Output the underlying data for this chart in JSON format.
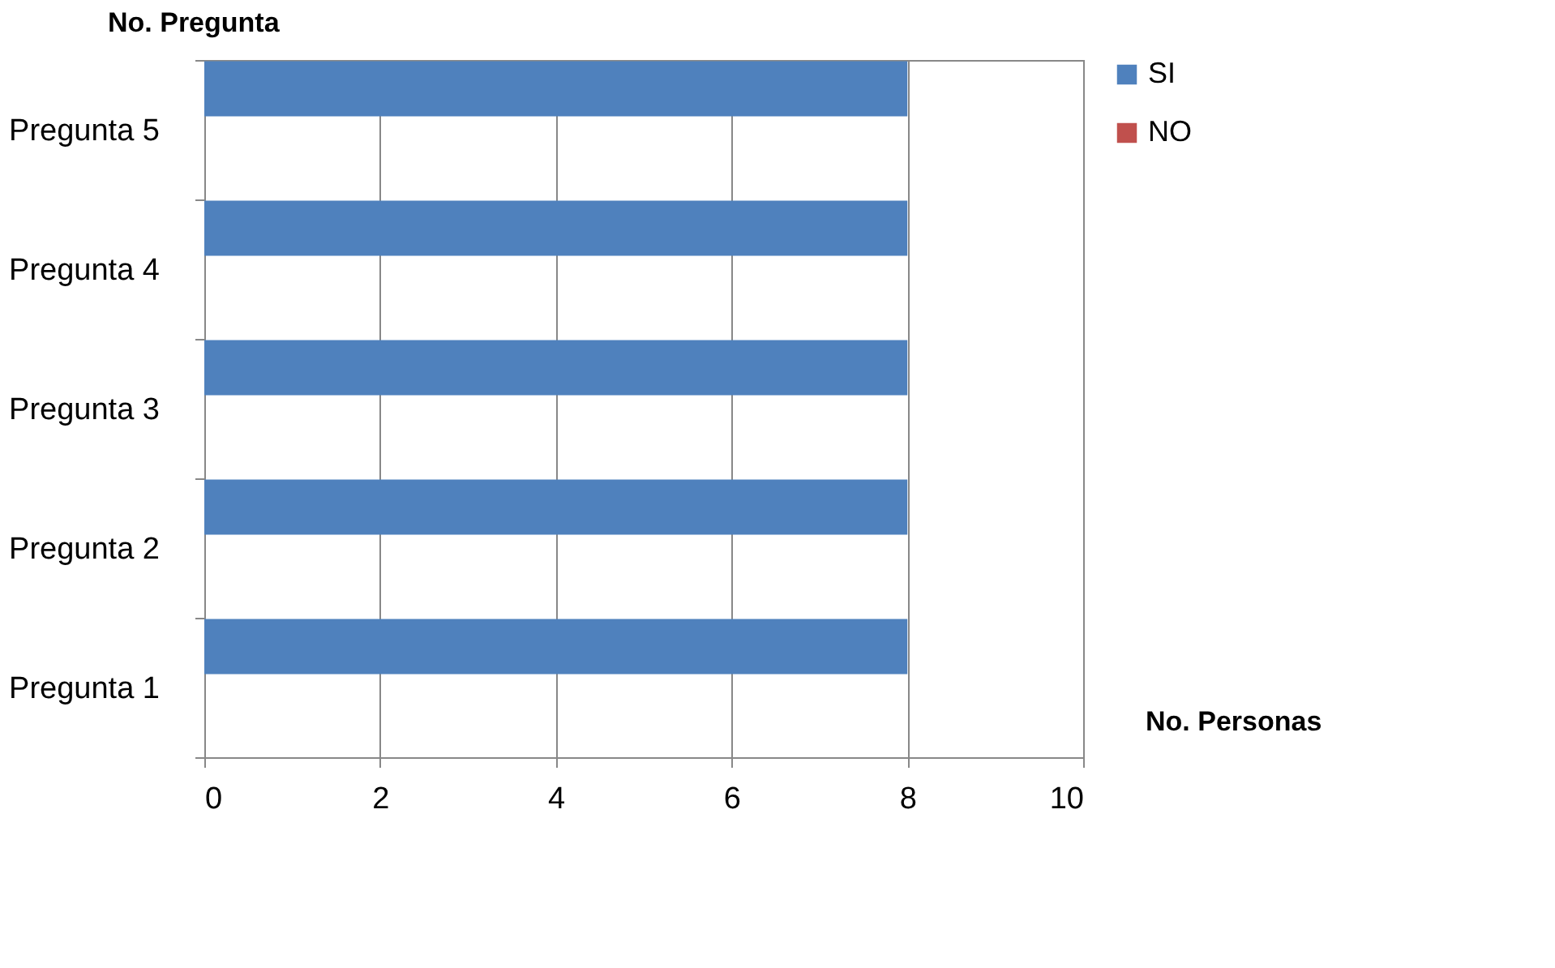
{
  "chart_data": {
    "type": "bar",
    "orientation": "horizontal",
    "categories": [
      "Pregunta 5",
      "Pregunta 4",
      "Pregunta 3",
      "Pregunta 2",
      "Pregunta 1"
    ],
    "series": [
      {
        "name": "SI",
        "color": "#4f81bd",
        "values": [
          8,
          8,
          8,
          8,
          8
        ]
      },
      {
        "name": "NO",
        "color": "#c0504d",
        "values": [
          0,
          0,
          0,
          0,
          0
        ]
      }
    ],
    "xlabel": "No. Personas",
    "ylabel": "No. Pregunta",
    "xlim": [
      0,
      10
    ],
    "xticks": [
      0,
      2,
      4,
      6,
      8,
      10
    ],
    "grid": "x",
    "legend": "right"
  }
}
